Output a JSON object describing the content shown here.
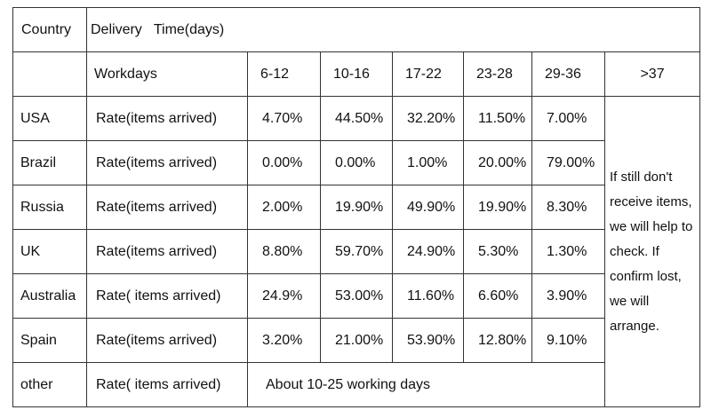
{
  "table": {
    "title_row": {
      "country": "Country",
      "delivery": "Delivery   Time(days)"
    },
    "header": {
      "workdays": "Workdays",
      "ranges": [
        "6-12",
        "10-16",
        "17-22",
        "23-28",
        "29-36",
        ">37"
      ]
    },
    "rows": [
      {
        "country": "USA",
        "label": "Rate(items arrived)",
        "rates": [
          "4.70%",
          "44.50%",
          "32.20%",
          "11.50%",
          "7.00%"
        ]
      },
      {
        "country": "Brazil",
        "label": "Rate(items arrived)",
        "rates": [
          "0.00%",
          "0.00%",
          "1.00%",
          "20.00%",
          "79.00%"
        ]
      },
      {
        "country": "Russia",
        "label": "Rate(items arrived)",
        "rates": [
          "2.00%",
          "19.90%",
          "49.90%",
          "19.90%",
          "8.30%"
        ]
      },
      {
        "country": "UK",
        "label": "Rate(items arrived)",
        "rates": [
          "8.80%",
          "59.70%",
          "24.90%",
          "5.30%",
          "1.30%"
        ]
      },
      {
        "country": "Australia",
        "label": "Rate( items arrived)",
        "rates": [
          "24.9%",
          "53.00%",
          "11.60%",
          "6.60%",
          "3.90%"
        ]
      },
      {
        "country": "Spain",
        "label": "Rate(items arrived)",
        "rates": [
          "3.20%",
          "21.00%",
          "53.90%",
          "12.80%",
          "9.10%"
        ]
      }
    ],
    "note": "If still don't receive items, we will help to check. If confirm lost, we will arrange.",
    "other": {
      "country": "other",
      "label": "Rate( items arrived)",
      "text": "About 10-25 working days"
    }
  }
}
